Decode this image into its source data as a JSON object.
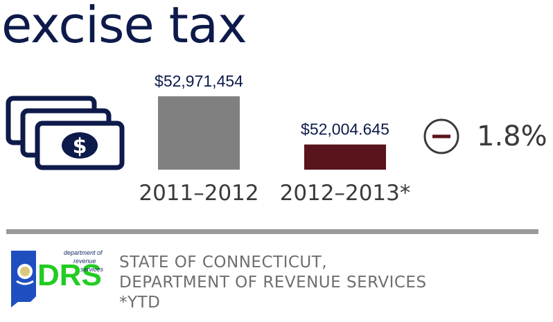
{
  "title": "excise tax",
  "icons": {
    "money": "money-stack-icon",
    "change": "minus-circle-icon",
    "logo": "drs-logo"
  },
  "colors": {
    "title": "#0d1a4a",
    "bar_previous": "#808080",
    "bar_current": "#5a141c",
    "accent": "#5a141c"
  },
  "chart_data": {
    "type": "bar",
    "categories": [
      "2011–2012",
      "2012–2013*"
    ],
    "values": [
      52971454,
      52004645
    ],
    "value_labels": [
      "$52,971,454",
      "$52,004.645"
    ],
    "colors": [
      "#808080",
      "#5a141c"
    ],
    "ylim": [
      51500000,
      53000000
    ],
    "grid": false,
    "legend": "none"
  },
  "change": {
    "value": "1.8%",
    "direction": "decrease"
  },
  "source": {
    "line1": "STATE OF CONNECTICUT,",
    "line2": "DEPARTMENT OF REVENUE SERVICES",
    "note": "*YTD"
  },
  "logo": {
    "letters": "DRS",
    "line1": "department of",
    "line2": "revenue",
    "line3": "services"
  }
}
